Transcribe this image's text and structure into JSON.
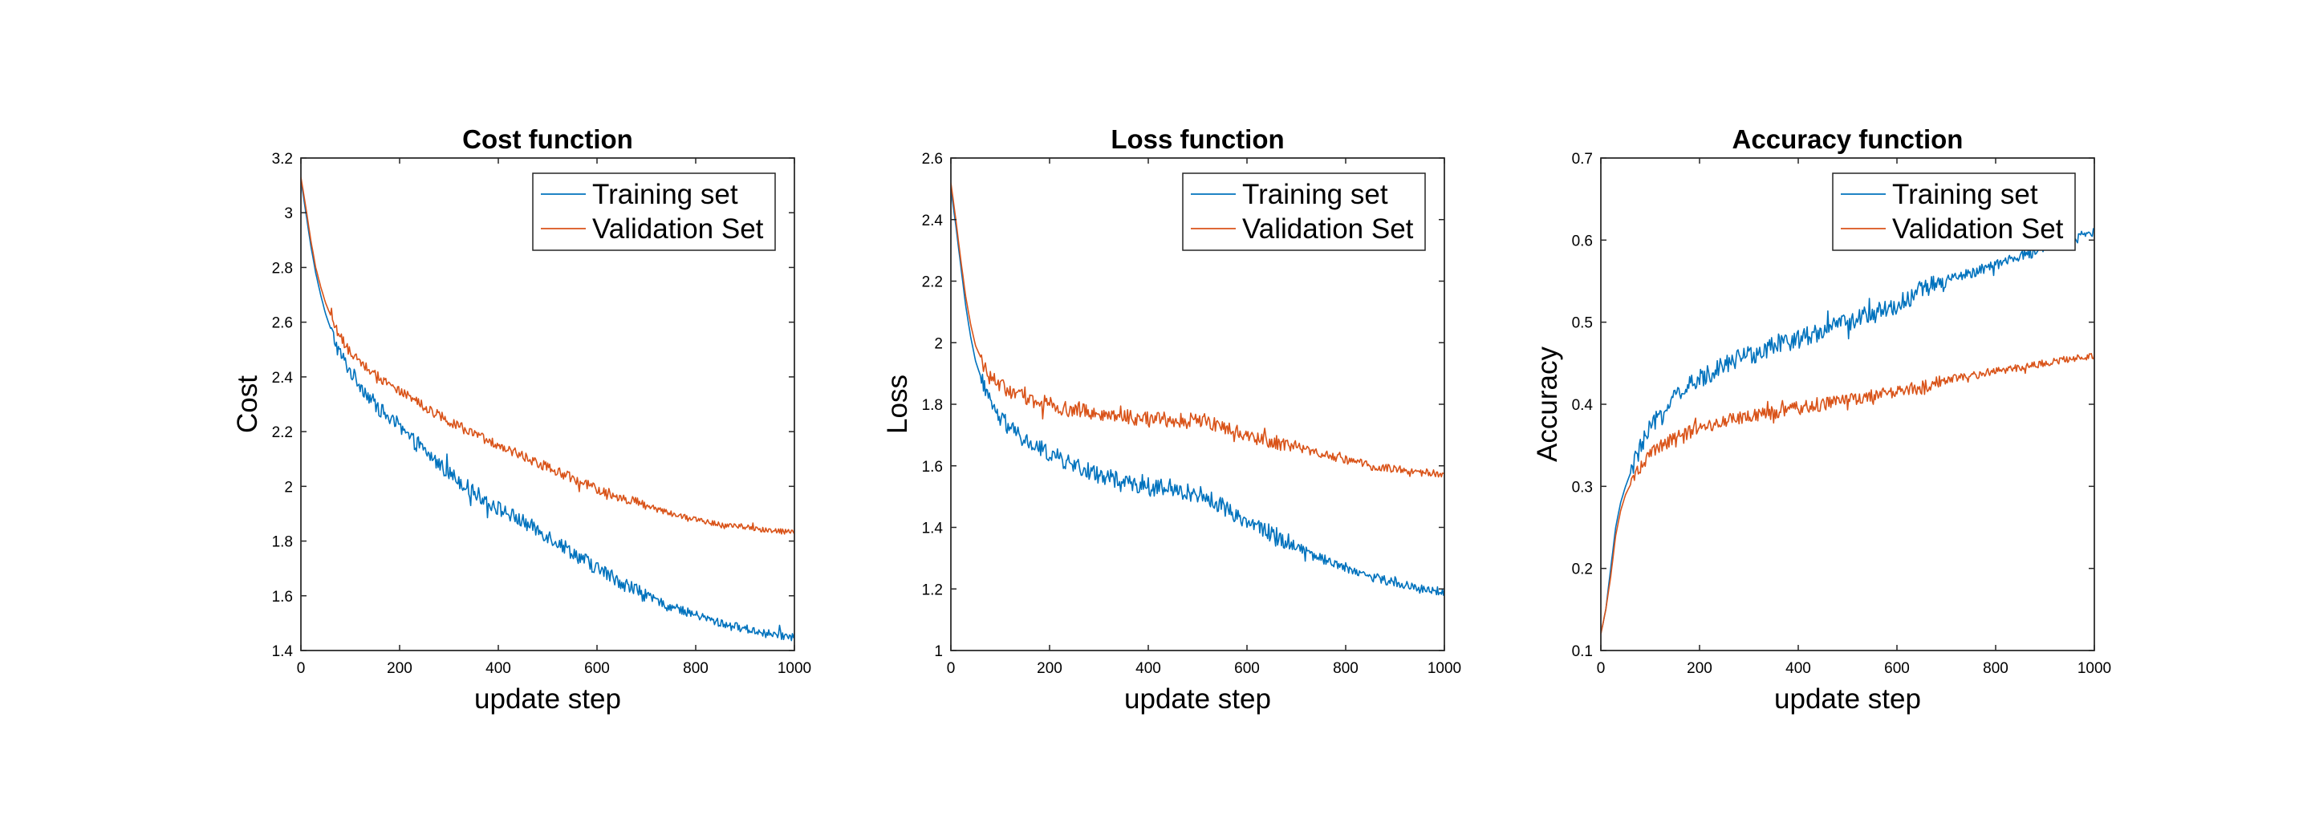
{
  "chart_data": [
    {
      "type": "line",
      "title": "Cost function",
      "xlabel": "update step",
      "ylabel": "Cost",
      "xlim": [
        0,
        1000
      ],
      "ylim": [
        1.4,
        3.2
      ],
      "xticks": [
        0,
        200,
        400,
        600,
        800,
        1000
      ],
      "yticks": [
        1.4,
        1.6,
        1.8,
        2,
        2.2,
        2.4,
        2.6,
        2.8,
        3,
        3.2
      ],
      "legend_position": "top-right",
      "series": [
        {
          "name": "Training set",
          "color": "#0072BD",
          "noise": 0.028,
          "x": [
            0,
            10,
            20,
            30,
            40,
            50,
            75,
            100,
            150,
            200,
            250,
            300,
            350,
            400,
            450,
            500,
            550,
            600,
            650,
            700,
            750,
            800,
            850,
            900,
            950,
            1000
          ],
          "y": [
            3.12,
            3.0,
            2.88,
            2.78,
            2.7,
            2.63,
            2.5,
            2.42,
            2.3,
            2.21,
            2.13,
            2.05,
            1.98,
            1.92,
            1.87,
            1.82,
            1.76,
            1.7,
            1.65,
            1.6,
            1.56,
            1.53,
            1.5,
            1.48,
            1.46,
            1.45
          ]
        },
        {
          "name": "Validation Set",
          "color": "#D95319",
          "noise": 0.018,
          "x": [
            0,
            10,
            20,
            30,
            40,
            50,
            75,
            100,
            150,
            200,
            250,
            300,
            350,
            400,
            450,
            500,
            550,
            600,
            650,
            700,
            750,
            800,
            850,
            900,
            950,
            1000
          ],
          "y": [
            3.13,
            3.02,
            2.9,
            2.8,
            2.73,
            2.67,
            2.56,
            2.49,
            2.41,
            2.35,
            2.29,
            2.24,
            2.19,
            2.15,
            2.11,
            2.07,
            2.03,
            1.99,
            1.96,
            1.93,
            1.9,
            1.88,
            1.86,
            1.85,
            1.84,
            1.83
          ]
        }
      ]
    },
    {
      "type": "line",
      "title": "Loss function",
      "xlabel": "update step",
      "ylabel": "Loss",
      "xlim": [
        0,
        1000
      ],
      "ylim": [
        1,
        2.6
      ],
      "xticks": [
        0,
        200,
        400,
        600,
        800,
        1000
      ],
      "yticks": [
        1,
        1.2,
        1.4,
        1.6,
        1.8,
        2,
        2.2,
        2.4,
        2.6
      ],
      "legend_position": "top-right",
      "series": [
        {
          "name": "Training set",
          "color": "#0072BD",
          "noise": 0.028,
          "x": [
            0,
            10,
            20,
            30,
            40,
            50,
            75,
            100,
            150,
            200,
            250,
            300,
            350,
            400,
            450,
            500,
            550,
            600,
            650,
            700,
            750,
            800,
            850,
            900,
            950,
            1000
          ],
          "y": [
            2.5,
            2.38,
            2.25,
            2.12,
            2.02,
            1.94,
            1.82,
            1.75,
            1.68,
            1.64,
            1.6,
            1.57,
            1.55,
            1.53,
            1.52,
            1.51,
            1.47,
            1.42,
            1.38,
            1.34,
            1.3,
            1.27,
            1.24,
            1.22,
            1.2,
            1.19
          ]
        },
        {
          "name": "Validation Set",
          "color": "#D95319",
          "noise": 0.025,
          "x": [
            0,
            10,
            20,
            30,
            40,
            50,
            75,
            100,
            150,
            200,
            250,
            300,
            350,
            400,
            450,
            500,
            550,
            600,
            650,
            700,
            750,
            800,
            850,
            900,
            950,
            1000
          ],
          "y": [
            2.52,
            2.4,
            2.27,
            2.15,
            2.06,
            1.99,
            1.9,
            1.86,
            1.82,
            1.8,
            1.78,
            1.77,
            1.76,
            1.75,
            1.75,
            1.75,
            1.73,
            1.7,
            1.68,
            1.66,
            1.64,
            1.62,
            1.6,
            1.59,
            1.58,
            1.57
          ]
        }
      ]
    },
    {
      "type": "line",
      "title": "Accuracy function",
      "xlabel": "update step",
      "ylabel": "Accuracy",
      "xlim": [
        0,
        1000
      ],
      "ylim": [
        0.1,
        0.7
      ],
      "xticks": [
        0,
        200,
        400,
        600,
        800,
        1000
      ],
      "yticks": [
        0.1,
        0.2,
        0.3,
        0.4,
        0.5,
        0.6,
        0.7
      ],
      "legend_position": "top-right",
      "series": [
        {
          "name": "Training set",
          "color": "#0072BD",
          "noise": 0.012,
          "x": [
            0,
            10,
            20,
            30,
            40,
            50,
            75,
            100,
            150,
            200,
            250,
            300,
            350,
            400,
            450,
            500,
            550,
            600,
            650,
            700,
            750,
            800,
            850,
            900,
            950,
            1000
          ],
          "y": [
            0.12,
            0.15,
            0.2,
            0.25,
            0.28,
            0.3,
            0.34,
            0.37,
            0.41,
            0.43,
            0.45,
            0.46,
            0.47,
            0.48,
            0.49,
            0.5,
            0.51,
            0.52,
            0.54,
            0.55,
            0.56,
            0.57,
            0.58,
            0.59,
            0.6,
            0.61
          ]
        },
        {
          "name": "Validation Set",
          "color": "#D95319",
          "noise": 0.008,
          "x": [
            0,
            10,
            20,
            30,
            40,
            50,
            75,
            100,
            150,
            200,
            250,
            300,
            350,
            400,
            450,
            500,
            550,
            600,
            650,
            700,
            750,
            800,
            850,
            900,
            950,
            1000
          ],
          "y": [
            0.12,
            0.15,
            0.19,
            0.24,
            0.27,
            0.29,
            0.32,
            0.34,
            0.36,
            0.37,
            0.38,
            0.385,
            0.39,
            0.395,
            0.4,
            0.405,
            0.41,
            0.415,
            0.42,
            0.43,
            0.435,
            0.44,
            0.445,
            0.45,
            0.455,
            0.46
          ]
        }
      ]
    }
  ]
}
